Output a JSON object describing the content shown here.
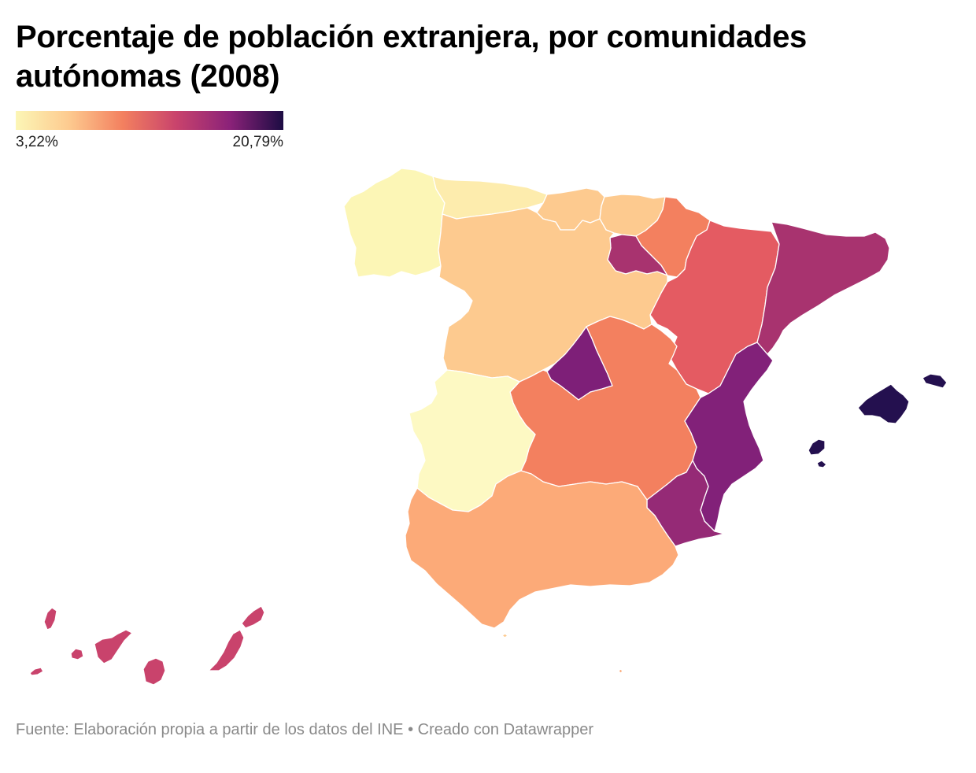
{
  "title": "Porcentaje de población extranjera, por comunidades autónomas (2008)",
  "legend": {
    "min_label": "3,22%",
    "max_label": "20,79%",
    "min_value": 3.22,
    "max_value": 20.79,
    "colors": [
      "#fcf6b6",
      "#fdca8f",
      "#f3805f",
      "#c9436c",
      "#8b2279",
      "#1c0c43"
    ]
  },
  "regions": {
    "galicia": "#fcf6b6",
    "asturias": "#fdecad",
    "cantabria": "#fdca8f",
    "pais_vasco": "#fdca8f",
    "navarra": "#f3805f",
    "la_rioja": "#a8336f",
    "aragon": "#e45b62",
    "cataluna": "#a8336f",
    "castilla_y_leon": "#fdca8f",
    "madrid": "#7e1f78",
    "castilla_la_mancha": "#f3805f",
    "extremadura": "#fdf9c3",
    "valencia": "#822179",
    "murcia": "#952a76",
    "andalucia": "#fcaa78",
    "baleares": "#24104f",
    "canarias": "#c9436c",
    "ceuta": "#fdca8f",
    "melilla": "#fcaa78"
  },
  "footer": "Fuente: Elaboración propia a partir de los datos del INE • Creado con Datawrapper"
}
